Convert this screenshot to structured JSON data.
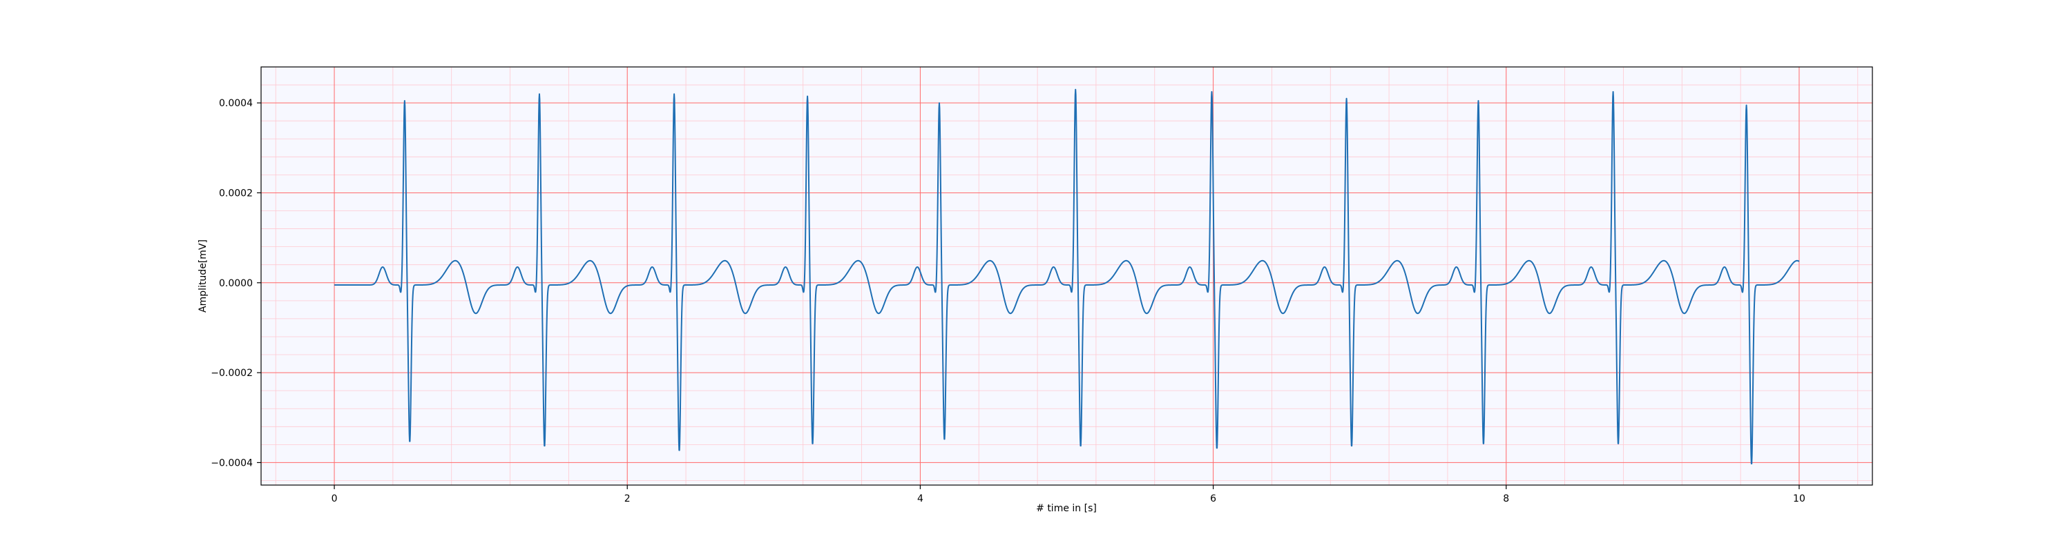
{
  "chart_data": {
    "type": "line",
    "title": "",
    "xlabel": "# time in [s]",
    "ylabel": "Amplitude[mV]",
    "xlim": [
      -0.5,
      10.5
    ],
    "ylim": [
      -0.00045,
      0.00048
    ],
    "x_ticks": [
      0,
      2,
      4,
      6,
      8,
      10
    ],
    "x_tick_labels": [
      "0",
      "2",
      "4",
      "6",
      "8",
      "10"
    ],
    "y_ticks": [
      -0.0004,
      -0.0002,
      0.0,
      0.0002,
      0.0004
    ],
    "y_tick_labels": [
      "−0.0004",
      "−0.0002",
      "0.0000",
      "0.0002",
      "0.0004"
    ],
    "grid": {
      "major": true,
      "minor": true,
      "major_color": "#ff6b6b",
      "minor_color": "#ffc8d0"
    },
    "background_color": "#f7f8ff",
    "series": [
      {
        "color": "#1f6fb4",
        "sample_rate_hz": 100,
        "duration_s": 10,
        "beats": [
          {
            "r_time": 0.48,
            "r_peak": 0.00041,
            "s_min": -0.00035
          },
          {
            "r_time": 1.4,
            "r_peak": 0.000425,
            "s_min": -0.00036
          },
          {
            "r_time": 2.32,
            "r_peak": 0.000425,
            "s_min": -0.00037
          },
          {
            "r_time": 3.23,
            "r_peak": 0.00042,
            "s_min": -0.000355
          },
          {
            "r_time": 4.13,
            "r_peak": 0.000405,
            "s_min": -0.000345
          },
          {
            "r_time": 5.06,
            "r_peak": 0.000435,
            "s_min": -0.00036
          },
          {
            "r_time": 5.99,
            "r_peak": 0.00043,
            "s_min": -0.000365
          },
          {
            "r_time": 6.91,
            "r_peak": 0.000415,
            "s_min": -0.00036
          },
          {
            "r_time": 7.81,
            "r_peak": 0.00041,
            "s_min": -0.000355
          },
          {
            "r_time": 8.73,
            "r_peak": 0.00043,
            "s_min": -0.000355
          },
          {
            "r_time": 9.64,
            "r_peak": 0.0004,
            "s_min": -0.0004
          }
        ]
      }
    ]
  }
}
